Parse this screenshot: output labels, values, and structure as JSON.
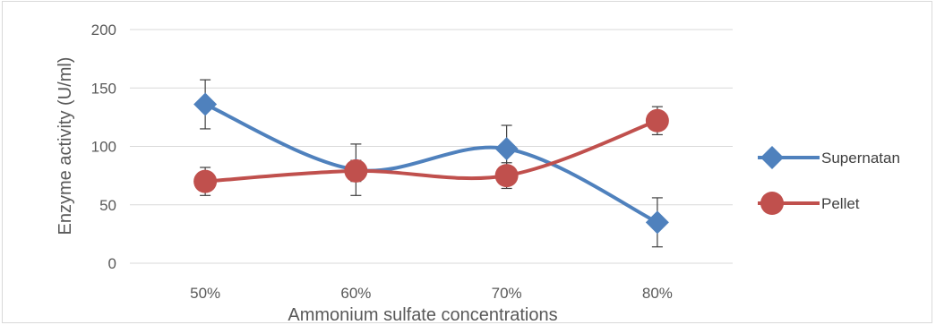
{
  "chart_data": {
    "type": "line",
    "title": "",
    "xlabel": "Ammonium sulfate concentrations",
    "ylabel": "Enzyme activity (U/ml)",
    "categories": [
      "50%",
      "60%",
      "70%",
      "80%"
    ],
    "ylim": [
      0,
      200
    ],
    "yticks": [
      0,
      50,
      100,
      150,
      200
    ],
    "grid": true,
    "legend_position": "right",
    "series": [
      {
        "name": "Supernatan",
        "values": [
          136,
          80,
          98,
          35
        ],
        "error": [
          21,
          22,
          20,
          21
        ],
        "color": "#4f81bd",
        "marker": "diamond"
      },
      {
        "name": "Pellet",
        "values": [
          70,
          79,
          75,
          122
        ],
        "error": [
          12,
          9,
          11,
          12
        ],
        "color": "#c0504d",
        "marker": "circle"
      }
    ]
  }
}
